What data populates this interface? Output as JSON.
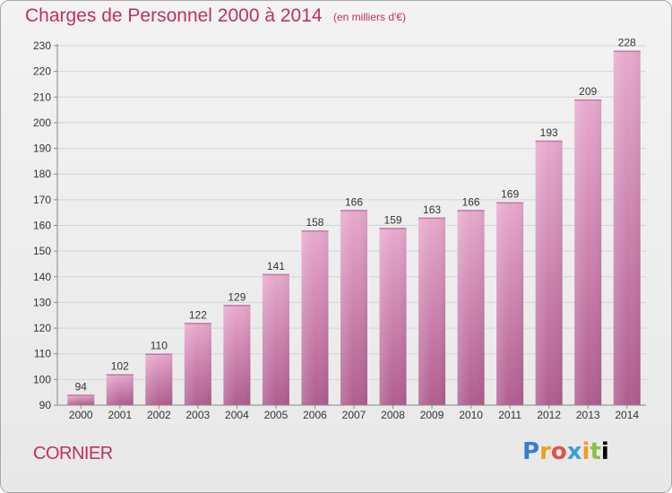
{
  "title": "Charges de Personnel 2000 à 2014",
  "subtitle": "(en milliers d'€)",
  "commune": "CORNIER",
  "logo_text": "Proxiti",
  "colors": {
    "bar_top": "#e7a9cd",
    "bar_bottom": "#b05d8e",
    "text_accent": "#c0305a"
  },
  "chart_data": {
    "type": "bar",
    "title": "Charges de Personnel 2000 à 2014",
    "subtitle": "(en milliers d'€)",
    "categories": [
      "2000",
      "2001",
      "2002",
      "2003",
      "2004",
      "2005",
      "2006",
      "2007",
      "2008",
      "2009",
      "2010",
      "2011",
      "2012",
      "2013",
      "2014"
    ],
    "values": [
      94,
      102,
      110,
      122,
      129,
      141,
      158,
      166,
      159,
      163,
      166,
      169,
      193,
      209,
      228
    ],
    "ylim": [
      90,
      230
    ],
    "yticks": [
      90,
      100,
      110,
      120,
      130,
      140,
      150,
      160,
      170,
      180,
      190,
      200,
      210,
      220,
      230
    ],
    "grid": true,
    "xlabel": "",
    "ylabel": ""
  }
}
